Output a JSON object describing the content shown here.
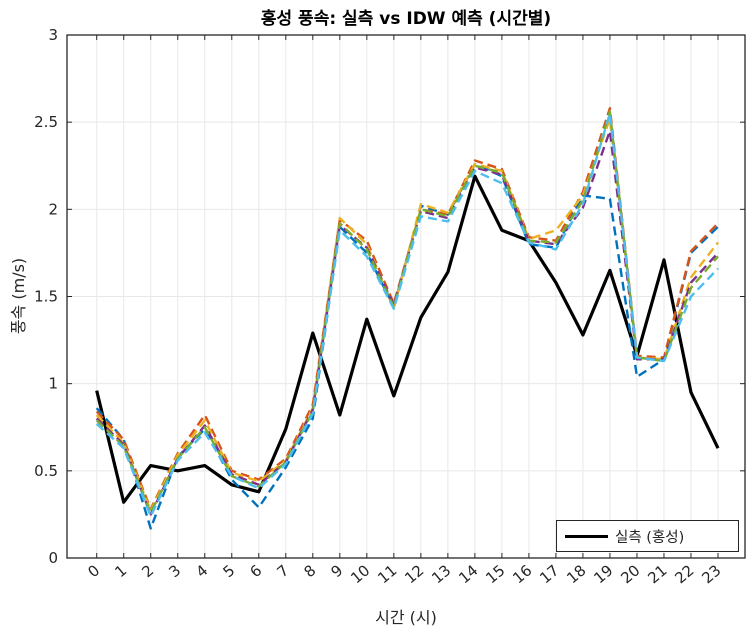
{
  "figure": {
    "title": "홍성 풍속: 실측 vs IDW 예측 (시간별)",
    "x_label": "시간 (시)",
    "y_label": "풍속 (m/s)",
    "background_color": "#ffffff",
    "axis_color": "#262626",
    "grid_color": "#e8e8e8"
  },
  "legend": {
    "position": "south-east",
    "entries": [
      {
        "label": "실측 (홍성)",
        "color": "#000000",
        "style": "solid"
      }
    ]
  },
  "chart_data": {
    "type": "line",
    "title": "홍성 풍속: 실측 vs IDW 예측 (시간별)",
    "xlabel": "시간 (시)",
    "ylabel": "풍속 (m/s)",
    "x": [
      0,
      1,
      2,
      3,
      4,
      5,
      6,
      7,
      8,
      9,
      10,
      11,
      12,
      13,
      14,
      15,
      16,
      17,
      18,
      19,
      20,
      21,
      22,
      23
    ],
    "x_tick_labels": [
      "0",
      "1",
      "2",
      "3",
      "4",
      "5",
      "6",
      "7",
      "8",
      "9",
      "10",
      "11",
      "12",
      "13",
      "14",
      "15",
      "16",
      "17",
      "18",
      "19",
      "20",
      "21",
      "22",
      "23"
    ],
    "x_tick_rotation": -40,
    "y_ticks": [
      0,
      0.5,
      1,
      1.5,
      2,
      2.5,
      3
    ],
    "y_tick_labels": [
      "0",
      "0.5",
      "1",
      "1.5",
      "2",
      "2.5",
      "3"
    ],
    "xlim": [
      -1.1,
      24.0
    ],
    "ylim": [
      0,
      3
    ],
    "grid": true,
    "legend_position": "south-east",
    "series": [
      {
        "key": "measured",
        "legend_label": "실측 (홍성)",
        "color": "#000000",
        "style": "solid",
        "width": 3.2,
        "values": [
          0.96,
          0.32,
          0.53,
          0.5,
          0.53,
          0.42,
          0.38,
          0.74,
          1.29,
          0.82,
          1.37,
          0.93,
          1.38,
          1.64,
          2.19,
          1.88,
          1.82,
          1.58,
          1.28,
          1.65,
          1.16,
          1.71,
          0.95,
          0.63
        ]
      },
      {
        "key": "idw-blue",
        "color": "#0072BD",
        "style": "dashed",
        "width": 2.4,
        "values": [
          0.86,
          0.68,
          0.17,
          0.58,
          0.74,
          0.45,
          0.29,
          0.52,
          0.8,
          1.9,
          1.75,
          1.44,
          2.02,
          1.97,
          2.26,
          2.19,
          1.8,
          1.78,
          2.08,
          2.06,
          1.04,
          1.14,
          1.75,
          1.9
        ]
      },
      {
        "key": "idw-orange",
        "color": "#D95319",
        "style": "dashed",
        "width": 2.4,
        "values": [
          0.84,
          0.68,
          0.28,
          0.6,
          0.82,
          0.5,
          0.45,
          0.57,
          0.88,
          1.94,
          1.82,
          1.46,
          2.0,
          1.97,
          2.28,
          2.23,
          1.84,
          1.82,
          2.1,
          2.58,
          1.16,
          1.15,
          1.76,
          1.92
        ]
      },
      {
        "key": "idw-yellow",
        "color": "#EDB120",
        "style": "dashed",
        "width": 2.4,
        "values": [
          0.82,
          0.66,
          0.27,
          0.59,
          0.79,
          0.49,
          0.44,
          0.56,
          0.86,
          1.95,
          1.8,
          1.43,
          2.03,
          1.98,
          2.26,
          2.22,
          1.83,
          1.88,
          2.08,
          2.52,
          1.15,
          1.14,
          1.61,
          1.81
        ]
      },
      {
        "key": "idw-purple",
        "color": "#7E2F8E",
        "style": "dashed",
        "width": 2.4,
        "values": [
          0.8,
          0.65,
          0.25,
          0.57,
          0.76,
          0.48,
          0.42,
          0.55,
          0.85,
          1.91,
          1.78,
          1.45,
          1.99,
          1.95,
          2.24,
          2.2,
          1.82,
          1.8,
          2.01,
          2.45,
          1.14,
          1.14,
          1.58,
          1.75
        ]
      },
      {
        "key": "idw-green",
        "color": "#77AC30",
        "style": "dashed",
        "width": 2.4,
        "values": [
          0.79,
          0.64,
          0.26,
          0.57,
          0.75,
          0.47,
          0.41,
          0.55,
          0.84,
          1.92,
          1.77,
          1.44,
          2.0,
          1.96,
          2.25,
          2.21,
          1.82,
          1.81,
          2.05,
          2.56,
          1.15,
          1.13,
          1.55,
          1.73
        ]
      },
      {
        "key": "idw-cyan",
        "color": "#4DBEEE",
        "style": "dashed",
        "width": 2.4,
        "values": [
          0.77,
          0.63,
          0.24,
          0.56,
          0.72,
          0.47,
          0.4,
          0.54,
          0.83,
          1.88,
          1.73,
          1.43,
          1.96,
          1.93,
          2.22,
          2.15,
          1.81,
          1.77,
          2.03,
          2.55,
          1.15,
          1.13,
          1.5,
          1.66
        ]
      }
    ]
  }
}
